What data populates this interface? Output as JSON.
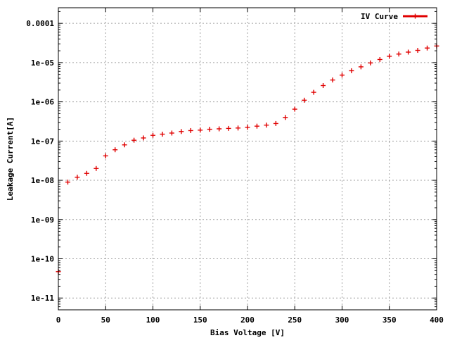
{
  "chart_data": {
    "type": "scatter",
    "xlabel": "Bias Voltage [V]",
    "ylabel": "Leakage Current[A]",
    "xlim": [
      0,
      400
    ],
    "ylim": [
      5e-12,
      0.00025
    ],
    "y_scale": "log",
    "grid": true,
    "legend_position": "top-right",
    "x_ticks": [
      0,
      50,
      100,
      150,
      200,
      250,
      300,
      350,
      400
    ],
    "y_ticks": [
      {
        "value": 1e-11,
        "label": "1e-11"
      },
      {
        "value": 1e-10,
        "label": "1e-10"
      },
      {
        "value": 1e-09,
        "label": "1e-09"
      },
      {
        "value": 1e-08,
        "label": "1e-08"
      },
      {
        "value": 1e-07,
        "label": "1e-07"
      },
      {
        "value": 1e-06,
        "label": "1e-06"
      },
      {
        "value": 1e-05,
        "label": "1e-05"
      },
      {
        "value": 0.0001,
        "label": "0.0001"
      }
    ],
    "series": [
      {
        "name": "IV Curve",
        "color": "#e00000",
        "marker": "plus",
        "x": [
          0,
          10,
          20,
          30,
          40,
          50,
          60,
          70,
          80,
          90,
          100,
          110,
          120,
          130,
          140,
          150,
          160,
          170,
          180,
          190,
          200,
          210,
          220,
          230,
          240,
          250,
          260,
          270,
          280,
          290,
          300,
          310,
          320,
          330,
          340,
          350,
          360,
          370,
          380,
          390,
          400
        ],
        "y": [
          4.7e-11,
          9e-09,
          1.2e-08,
          1.5e-08,
          2e-08,
          4.2e-08,
          6e-08,
          8e-08,
          1.05e-07,
          1.2e-07,
          1.4e-07,
          1.5e-07,
          1.6e-07,
          1.75e-07,
          1.85e-07,
          1.9e-07,
          2e-07,
          2.05e-07,
          2.1e-07,
          2.15e-07,
          2.25e-07,
          2.4e-07,
          2.55e-07,
          2.8e-07,
          4e-07,
          6.5e-07,
          1.1e-06,
          1.75e-06,
          2.6e-06,
          3.6e-06,
          4.8e-06,
          6.2e-06,
          7.8e-06,
          9.8e-06,
          1.2e-05,
          1.45e-05,
          1.65e-05,
          1.85e-05,
          2.05e-05,
          2.35e-05,
          2.65e-05
        ]
      }
    ]
  }
}
